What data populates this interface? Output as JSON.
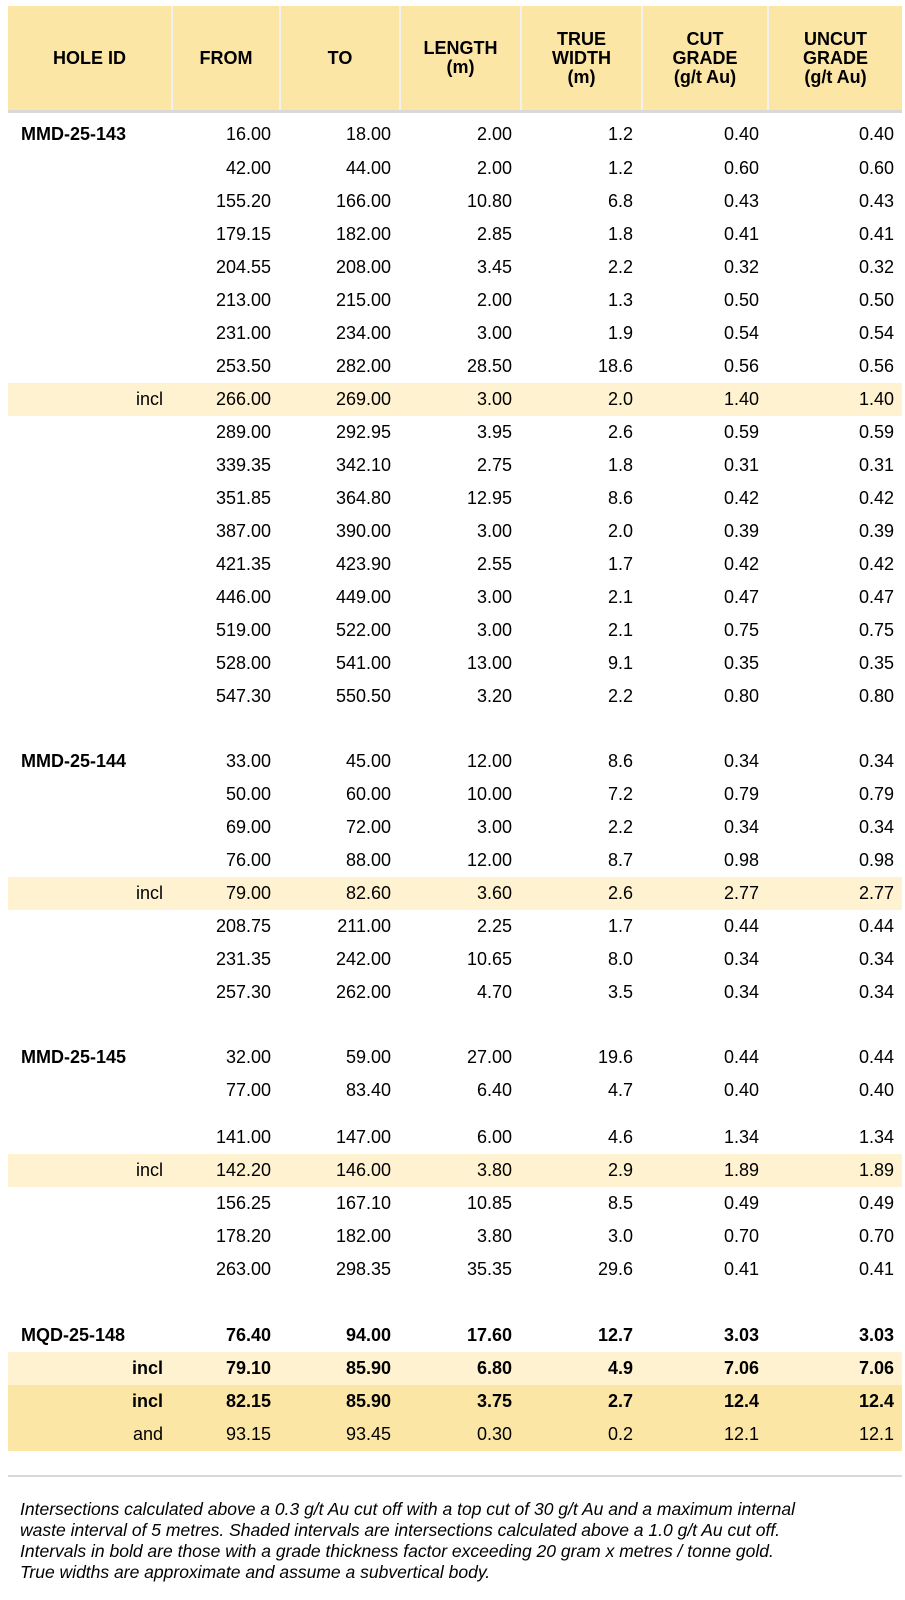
{
  "header": {
    "hole_id": "HOLE ID",
    "from": "FROM",
    "to": "TO",
    "length": [
      "LENGTH",
      "(m)"
    ],
    "true_width": [
      "TRUE",
      "WIDTH",
      "(m)"
    ],
    "cut_grade": [
      "CUT",
      "GRADE",
      "(g/t Au)"
    ],
    "uncut_grade": [
      "UNCUT",
      "GRADE",
      "(g/t Au)"
    ]
  },
  "rows": [
    {
      "label": "MMD-25-143",
      "from": "16.00",
      "to": "18.00",
      "length": "2.00",
      "width": "1.2",
      "cut": "0.40",
      "uncut": "0.40"
    },
    {
      "label": "",
      "from": "42.00",
      "to": "44.00",
      "length": "2.00",
      "width": "1.2",
      "cut": "0.60",
      "uncut": "0.60"
    },
    {
      "label": "",
      "from": "155.20",
      "to": "166.00",
      "length": "10.80",
      "width": "6.8",
      "cut": "0.43",
      "uncut": "0.43"
    },
    {
      "label": "",
      "from": "179.15",
      "to": "182.00",
      "length": "2.85",
      "width": "1.8",
      "cut": "0.41",
      "uncut": "0.41"
    },
    {
      "label": "",
      "from": "204.55",
      "to": "208.00",
      "length": "3.45",
      "width": "2.2",
      "cut": "0.32",
      "uncut": "0.32"
    },
    {
      "label": "",
      "from": "213.00",
      "to": "215.00",
      "length": "2.00",
      "width": "1.3",
      "cut": "0.50",
      "uncut": "0.50"
    },
    {
      "label": "",
      "from": "231.00",
      "to": "234.00",
      "length": "3.00",
      "width": "1.9",
      "cut": "0.54",
      "uncut": "0.54"
    },
    {
      "label": "",
      "from": "253.50",
      "to": "282.00",
      "length": "28.50",
      "width": "18.6",
      "cut": "0.56",
      "uncut": "0.56"
    },
    {
      "label": "incl",
      "from": "266.00",
      "to": "269.00",
      "length": "3.00",
      "width": "2.0",
      "cut": "1.40",
      "uncut": "1.40",
      "shade": "light"
    },
    {
      "label": "",
      "from": "289.00",
      "to": "292.95",
      "length": "3.95",
      "width": "2.6",
      "cut": "0.59",
      "uncut": "0.59"
    },
    {
      "label": "",
      "from": "339.35",
      "to": "342.10",
      "length": "2.75",
      "width": "1.8",
      "cut": "0.31",
      "uncut": "0.31"
    },
    {
      "label": "",
      "from": "351.85",
      "to": "364.80",
      "length": "12.95",
      "width": "8.6",
      "cut": "0.42",
      "uncut": "0.42"
    },
    {
      "label": "",
      "from": "387.00",
      "to": "390.00",
      "length": "3.00",
      "width": "2.0",
      "cut": "0.39",
      "uncut": "0.39"
    },
    {
      "label": "",
      "from": "421.35",
      "to": "423.90",
      "length": "2.55",
      "width": "1.7",
      "cut": "0.42",
      "uncut": "0.42"
    },
    {
      "label": "",
      "from": "446.00",
      "to": "449.00",
      "length": "3.00",
      "width": "2.1",
      "cut": "0.47",
      "uncut": "0.47"
    },
    {
      "label": "",
      "from": "519.00",
      "to": "522.00",
      "length": "3.00",
      "width": "2.1",
      "cut": "0.75",
      "uncut": "0.75"
    },
    {
      "label": "",
      "from": "528.00",
      "to": "541.00",
      "length": "13.00",
      "width": "9.1",
      "cut": "0.35",
      "uncut": "0.35"
    },
    {
      "label": "",
      "from": "547.30",
      "to": "550.50",
      "length": "3.20",
      "width": "2.2",
      "cut": "0.80",
      "uncut": "0.80"
    },
    {
      "label": "MMD-25-144",
      "from": "33.00",
      "to": "45.00",
      "length": "12.00",
      "width": "8.6",
      "cut": "0.34",
      "uncut": "0.34"
    },
    {
      "label": "",
      "from": "50.00",
      "to": "60.00",
      "length": "10.00",
      "width": "7.2",
      "cut": "0.79",
      "uncut": "0.79"
    },
    {
      "label": "",
      "from": "69.00",
      "to": "72.00",
      "length": "3.00",
      "width": "2.2",
      "cut": "0.34",
      "uncut": "0.34"
    },
    {
      "label": "",
      "from": "76.00",
      "to": "88.00",
      "length": "12.00",
      "width": "8.7",
      "cut": "0.98",
      "uncut": "0.98"
    },
    {
      "label": "incl",
      "from": "79.00",
      "to": "82.60",
      "length": "3.60",
      "width": "2.6",
      "cut": "2.77",
      "uncut": "2.77",
      "shade": "light"
    },
    {
      "label": "",
      "from": "208.75",
      "to": "211.00",
      "length": "2.25",
      "width": "1.7",
      "cut": "0.44",
      "uncut": "0.44"
    },
    {
      "label": "",
      "from": "231.35",
      "to": "242.00",
      "length": "10.65",
      "width": "8.0",
      "cut": "0.34",
      "uncut": "0.34"
    },
    {
      "label": "",
      "from": "257.30",
      "to": "262.00",
      "length": "4.70",
      "width": "3.5",
      "cut": "0.34",
      "uncut": "0.34"
    },
    {
      "label": "MMD-25-145",
      "from": "32.00",
      "to": "59.00",
      "length": "27.00",
      "width": "19.6",
      "cut": "0.44",
      "uncut": "0.44"
    },
    {
      "label": "",
      "from": "77.00",
      "to": "83.40",
      "length": "6.40",
      "width": "4.7",
      "cut": "0.40",
      "uncut": "0.40"
    },
    {
      "label": "",
      "from": "141.00",
      "to": "147.00",
      "length": "6.00",
      "width": "4.6",
      "cut": "1.34",
      "uncut": "1.34"
    },
    {
      "label": "incl",
      "from": "142.20",
      "to": "146.00",
      "length": "3.80",
      "width": "2.9",
      "cut": "1.89",
      "uncut": "1.89",
      "shade": "light"
    },
    {
      "label": "",
      "from": "156.25",
      "to": "167.10",
      "length": "10.85",
      "width": "8.5",
      "cut": "0.49",
      "uncut": "0.49"
    },
    {
      "label": "",
      "from": "178.20",
      "to": "182.00",
      "length": "3.80",
      "width": "3.0",
      "cut": "0.70",
      "uncut": "0.70"
    },
    {
      "label": "",
      "from": "263.00",
      "to": "298.35",
      "length": "35.35",
      "width": "29.6",
      "cut": "0.41",
      "uncut": "0.41"
    },
    {
      "label": "MQD-25-148",
      "from": "76.40",
      "to": "94.00",
      "length": "17.60",
      "width": "12.7",
      "cut": "3.03",
      "uncut": "3.03",
      "bold": true
    },
    {
      "label": "incl",
      "from": "79.10",
      "to": "85.90",
      "length": "6.80",
      "width": "4.9",
      "cut": "7.06",
      "uncut": "7.06",
      "shade": "light",
      "bold": true
    },
    {
      "label": "incl",
      "from": "82.15",
      "to": "85.90",
      "length": "3.75",
      "width": "2.7",
      "cut": "12.4",
      "uncut": "12.4",
      "shade": "dark",
      "bold": true
    },
    {
      "label": "and",
      "from": "93.15",
      "to": "93.45",
      "length": "0.30",
      "width": "0.2",
      "cut": "12.1",
      "uncut": "12.1",
      "shade": "dark"
    }
  ],
  "footnote": [
    "Intersections calculated above a 0.3 g/t Au cut off with a top cut of 30 g/t Au and a maximum internal",
    "waste interval of 5 metres. Shaded intervals are intersections calculated above a 1.0 g/t Au cut off.",
    "Intervals in bold are those with a grade thickness factor exceeding 20 gram x metres / tonne gold.",
    "True widths are approximate and assume a subvertical body."
  ]
}
